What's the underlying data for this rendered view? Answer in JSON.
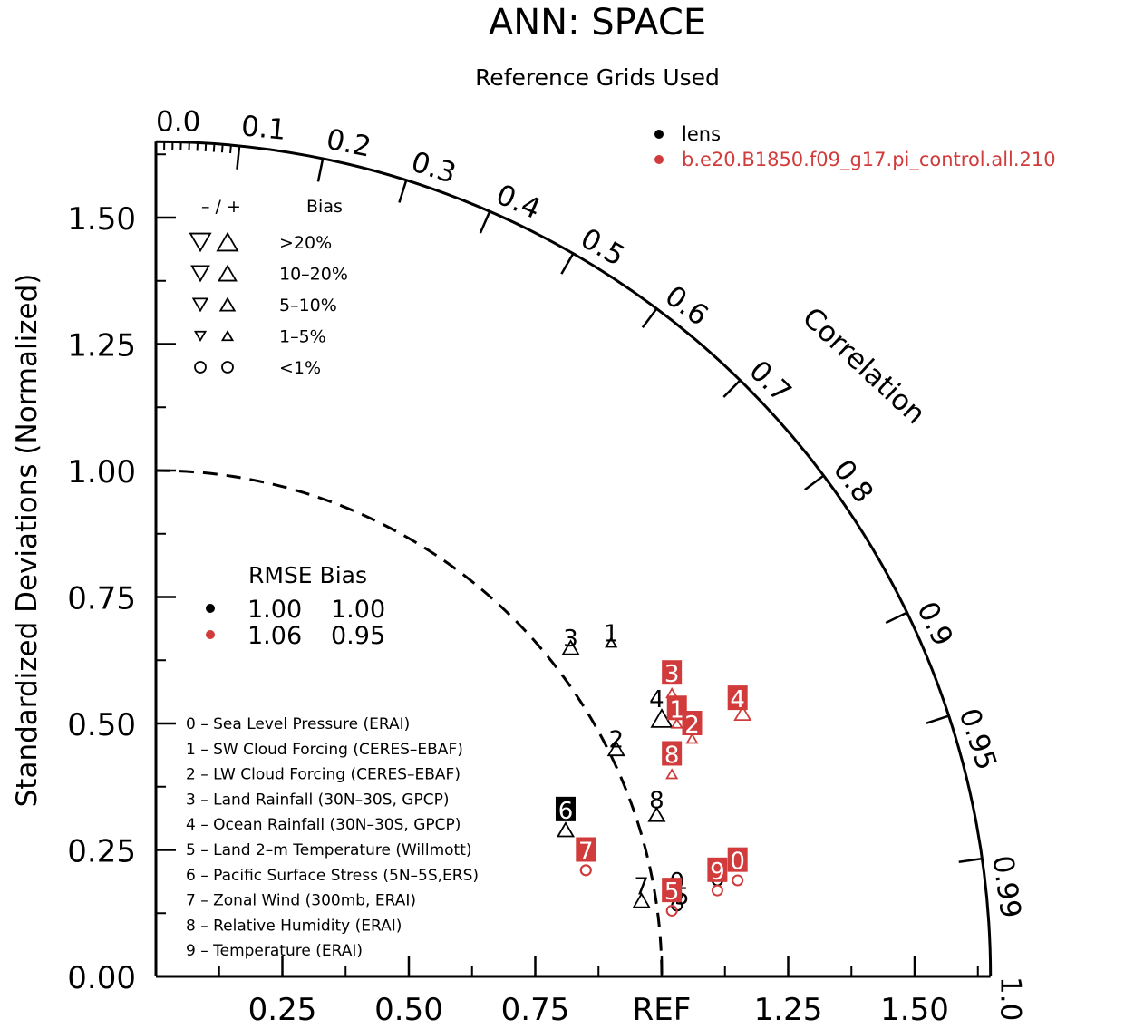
{
  "chart_data": {
    "type": "scatter",
    "subtype": "taylor_diagram",
    "title": "ANN: SPACE",
    "subtitle": "Reference Grids Used",
    "ylabel": "Standardized Deviations (Normalized)",
    "arc_label": "Correlation",
    "ref_label": "REF",
    "xlim": [
      0,
      1.65
    ],
    "ylim": [
      0,
      1.65
    ],
    "y_ticks": [
      "0.00",
      "0.25",
      "0.50",
      "0.75",
      "1.00",
      "1.25",
      "1.50"
    ],
    "x_tick_values": [
      0.25,
      0.5,
      0.75,
      1.25,
      1.5
    ],
    "x_tick_labels": [
      "0.25",
      "0.50",
      "0.75",
      "1.25",
      "1.50"
    ],
    "corr_ticks": [
      "0.0",
      "0.1",
      "0.2",
      "0.3",
      "0.4",
      "0.5",
      "0.6",
      "0.7",
      "0.8",
      "0.9",
      "0.95",
      "0.99",
      "1.0"
    ],
    "legend_models": [
      {
        "name": "lens",
        "color": "#000000"
      },
      {
        "name": "b.e20.B1850.f09_g17.pi_control.all.210",
        "color": "#d13b3b"
      }
    ],
    "bias_legend": {
      "header_signs": "– / +",
      "header_bias": "Bias",
      "rows": [
        ">20%",
        "10–20%",
        "5–10%",
        "1–5%",
        "<1%"
      ]
    },
    "summary": {
      "header": "RMSE Bias",
      "rows": [
        {
          "rmse": "1.00",
          "bias": "1.00",
          "color": "#000000"
        },
        {
          "rmse": "1.06",
          "bias": "0.95",
          "color": "#d13b3b"
        }
      ]
    },
    "variables": [
      "0 – Sea Level Pressure (ERAI)",
      "1 – SW Cloud Forcing (CERES–EBAF)",
      "2 – LW Cloud Forcing (CERES–EBAF)",
      "3 – Land Rainfall (30N–30S, GPCP)",
      "4 – Ocean Rainfall (30N–30S, GPCP)",
      "5 – Land 2–m Temperature (Willmott)",
      "6 – Pacific Surface Stress (5N–5S,ERS)",
      "7 – Zonal Wind (300mb, ERAI)",
      "8 – Relative Humidity (ERAI)",
      "9 – Temperature (ERAI)"
    ],
    "series": [
      {
        "name": "lens",
        "color": "#000000",
        "points": [
          {
            "id": "0",
            "x": 1.03,
            "y": 0.16,
            "marker": "circle-s"
          },
          {
            "id": "1",
            "x": 0.9,
            "y": 0.66,
            "marker": "up-s"
          },
          {
            "id": "2",
            "x": 0.91,
            "y": 0.45,
            "marker": "up-m"
          },
          {
            "id": "3",
            "x": 0.82,
            "y": 0.65,
            "marker": "up-m"
          },
          {
            "id": "4",
            "x": 1.0,
            "y": 0.51,
            "marker": "up-xl"
          },
          {
            "id": "5",
            "x": 1.03,
            "y": 0.14,
            "marker": "circle-s"
          },
          {
            "id": "6",
            "x": 0.81,
            "y": 0.29,
            "marker": "up-m"
          },
          {
            "id": "7",
            "x": 0.96,
            "y": 0.15,
            "marker": "up-m"
          },
          {
            "id": "8",
            "x": 0.99,
            "y": 0.32,
            "marker": "up-m"
          },
          {
            "id": "9",
            "x": 1.11,
            "y": 0.19,
            "marker": "circle-s"
          }
        ]
      },
      {
        "name": "b.e20.B1850.f09_g17.pi_control.all.210",
        "color": "#d13b3b",
        "points": [
          {
            "id": "0",
            "x": 1.15,
            "y": 0.19,
            "marker": "circle-s"
          },
          {
            "id": "1",
            "x": 1.03,
            "y": 0.5,
            "marker": "up-s"
          },
          {
            "id": "2",
            "x": 1.06,
            "y": 0.47,
            "marker": "up-s"
          },
          {
            "id": "3",
            "x": 1.02,
            "y": 0.56,
            "marker": "up-s"
          },
          {
            "id": "4",
            "x": 1.16,
            "y": 0.52,
            "marker": "up-m"
          },
          {
            "id": "5",
            "x": 1.02,
            "y": 0.13,
            "marker": "circle-s"
          },
          {
            "id": "6",
            "x": 0.85,
            "y": 0.21,
            "marker": "circle-s"
          },
          {
            "id": "7",
            "x": 0.85,
            "y": 0.21,
            "marker": "circle-s"
          },
          {
            "id": "8",
            "x": 1.02,
            "y": 0.4,
            "marker": "up-s"
          },
          {
            "id": "9",
            "x": 1.11,
            "y": 0.17,
            "marker": "circle-s"
          }
        ]
      }
    ],
    "labels": [
      {
        "text": "3",
        "x": 0.82,
        "y": 0.67,
        "color": "#000000",
        "boxed": false
      },
      {
        "text": "1",
        "x": 0.9,
        "y": 0.68,
        "color": "#000000",
        "boxed": false
      },
      {
        "text": "2",
        "x": 0.91,
        "y": 0.47,
        "color": "#000000",
        "boxed": false
      },
      {
        "text": "4",
        "x": 0.99,
        "y": 0.55,
        "color": "#000000",
        "boxed": false
      },
      {
        "text": "8",
        "x": 0.99,
        "y": 0.35,
        "color": "#000000",
        "boxed": false
      },
      {
        "text": "7",
        "x": 0.96,
        "y": 0.18,
        "color": "#000000",
        "boxed": false
      },
      {
        "text": "0",
        "x": 1.03,
        "y": 0.19,
        "color": "#000000",
        "boxed": false
      },
      {
        "text": "5",
        "x": 1.04,
        "y": 0.16,
        "color": "#000000",
        "boxed": false
      },
      {
        "text": "9",
        "x": 1.11,
        "y": 0.21,
        "color": "#000000",
        "boxed": false
      },
      {
        "text": "6",
        "x": 0.81,
        "y": 0.33,
        "color": "#000000",
        "boxed": true
      },
      {
        "text": "3",
        "x": 1.02,
        "y": 0.6,
        "color": "#d13b3b",
        "boxed": true
      },
      {
        "text": "1",
        "x": 1.03,
        "y": 0.53,
        "color": "#d13b3b",
        "boxed": true
      },
      {
        "text": "2",
        "x": 1.06,
        "y": 0.5,
        "color": "#d13b3b",
        "boxed": true
      },
      {
        "text": "4",
        "x": 1.15,
        "y": 0.55,
        "color": "#d13b3b",
        "boxed": true
      },
      {
        "text": "8",
        "x": 1.02,
        "y": 0.44,
        "color": "#d13b3b",
        "boxed": true
      },
      {
        "text": "7",
        "x": 0.85,
        "y": 0.25,
        "color": "#d13b3b",
        "boxed": true
      },
      {
        "text": "5",
        "x": 1.02,
        "y": 0.17,
        "color": "#d13b3b",
        "boxed": true
      },
      {
        "text": "9",
        "x": 1.11,
        "y": 0.21,
        "color": "#d13b3b",
        "boxed": true
      },
      {
        "text": "0",
        "x": 1.15,
        "y": 0.23,
        "color": "#d13b3b",
        "boxed": true
      }
    ]
  }
}
